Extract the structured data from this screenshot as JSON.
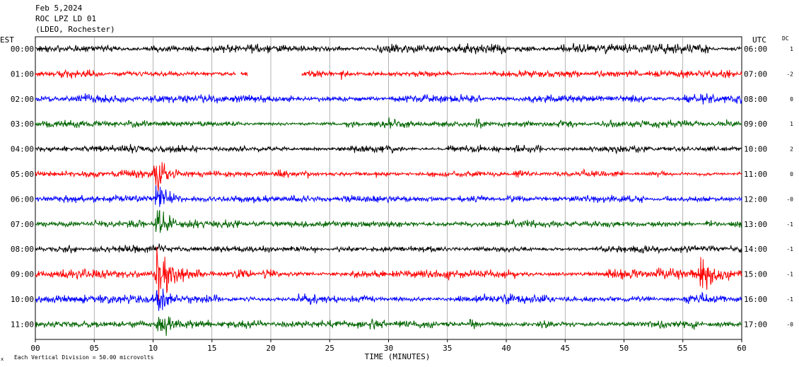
{
  "header": {
    "date": "Feb 5,2024",
    "station": "ROC LPZ LD 01",
    "network": "(LDEO, Rochester)"
  },
  "footer": {
    "scale_text": "Each Vertical Division =   50.00 microvolts",
    "corner_mark": "x"
  },
  "chart_data": {
    "type": "line",
    "title": "",
    "xlabel": "TIME (MINUTES)",
    "left_axis_label": "EST",
    "right_axis_label": "UTC",
    "dc_label": "DC",
    "xlim": [
      0,
      60
    ],
    "x_ticks": [
      0,
      5,
      10,
      15,
      20,
      25,
      30,
      35,
      40,
      45,
      50,
      55,
      60
    ],
    "x_tick_labels": [
      "00",
      "05",
      "10",
      "15",
      "20",
      "25",
      "30",
      "35",
      "40",
      "45",
      "50",
      "55",
      "60"
    ],
    "grid": "vertical every 5 minutes",
    "rows": [
      {
        "est": "00:00",
        "utc": "06:00",
        "dc": "1",
        "color": "#000000",
        "amp": 5,
        "events": [
          {
            "t": 41,
            "amp": 9
          },
          {
            "t": 38,
            "amp": 7
          },
          {
            "t": 52,
            "amp": 8
          }
        ]
      },
      {
        "est": "01:00",
        "utc": "07:00",
        "dc": "-2",
        "color": "#ff0000",
        "amp": 4,
        "gaps": [
          [
            17.0,
            17.4
          ],
          [
            18.0,
            22.6
          ]
        ],
        "events": [
          {
            "t": 26,
            "amp": 9
          },
          {
            "t": 58,
            "amp": 8
          }
        ]
      },
      {
        "est": "02:00",
        "utc": "08:00",
        "dc": "0",
        "color": "#0000ff",
        "amp": 5,
        "events": [
          {
            "t": 12.5,
            "amp": 8
          }
        ]
      },
      {
        "est": "03:00",
        "utc": "09:00",
        "dc": "1",
        "color": "#006400",
        "amp": 4,
        "events": [
          {
            "t": 26.5,
            "amp": 8
          },
          {
            "t": 30,
            "amp": 12
          },
          {
            "t": 37.5,
            "amp": 9
          }
        ]
      },
      {
        "est": "04:00",
        "utc": "10:00",
        "dc": "2",
        "color": "#000000",
        "amp": 4,
        "events": [
          {
            "t": 8,
            "amp": 10
          },
          {
            "t": 19,
            "amp": 8
          }
        ]
      },
      {
        "est": "05:00",
        "utc": "11:00",
        "dc": "0",
        "color": "#ff0000",
        "amp": 4,
        "events": [
          {
            "t": 10.2,
            "amp": 30
          },
          {
            "t": 46.5,
            "amp": 8
          }
        ]
      },
      {
        "est": "06:00",
        "utc": "12:00",
        "dc": "-0",
        "color": "#0000ff",
        "amp": 4,
        "events": [
          {
            "t": 19,
            "amp": 8
          },
          {
            "t": 10.3,
            "amp": 30
          }
        ]
      },
      {
        "est": "07:00",
        "utc": "13:00",
        "dc": "-1",
        "color": "#006400",
        "amp": 4,
        "events": [
          {
            "t": 57,
            "amp": 9
          },
          {
            "t": 10.4,
            "amp": 30
          }
        ]
      },
      {
        "est": "08:00",
        "utc": "14:00",
        "dc": "-1",
        "color": "#000000",
        "amp": 4,
        "events": [
          {
            "t": 10.5,
            "amp": 12
          },
          {
            "t": 56.5,
            "amp": 10
          }
        ]
      },
      {
        "est": "09:00",
        "utc": "15:00",
        "dc": "-1",
        "color": "#ff0000",
        "amp": 6,
        "events": [
          {
            "t": 10.4,
            "amp": 55
          },
          {
            "t": 12.5,
            "amp": 14
          },
          {
            "t": 19.5,
            "amp": 12
          },
          {
            "t": 56.5,
            "amp": 38
          }
        ]
      },
      {
        "est": "10:00",
        "utc": "16:00",
        "dc": "-1",
        "color": "#0000ff",
        "amp": 5,
        "events": [
          {
            "t": 10.4,
            "amp": 30
          },
          {
            "t": 4,
            "amp": 8
          },
          {
            "t": 56.5,
            "amp": 12
          }
        ]
      },
      {
        "est": "11:00",
        "utc": "17:00",
        "dc": "-0",
        "color": "#006400",
        "amp": 5,
        "events": [
          {
            "t": 10.5,
            "amp": 30
          },
          {
            "t": 37,
            "amp": 10
          },
          {
            "t": 43,
            "amp": 9
          },
          {
            "t": 53,
            "amp": 9
          }
        ]
      }
    ]
  }
}
